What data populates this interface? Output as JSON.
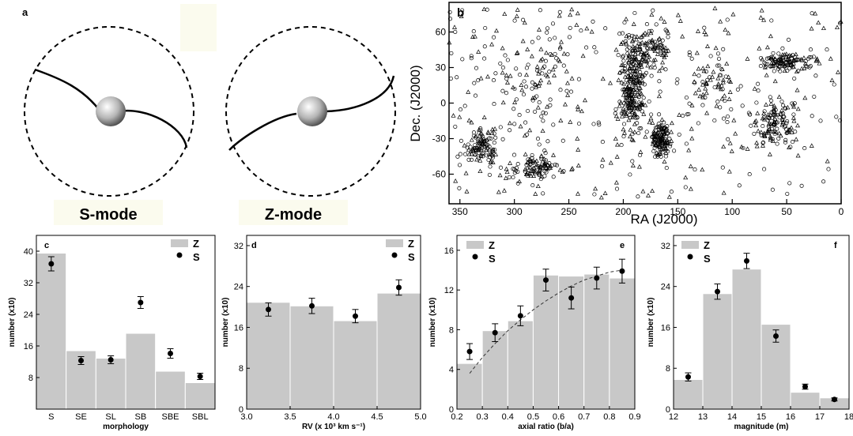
{
  "panel_a": {
    "letter": "a",
    "labels": [
      "S-mode",
      "Z-mode"
    ]
  },
  "chart_data": [
    {
      "panel": "b",
      "type": "scatter",
      "xlabel": "RA (J2000)",
      "ylabel": "Dec. (J2000)",
      "xlim": [
        360,
        0
      ],
      "ylim": [
        -85,
        85
      ],
      "xticks": [
        350,
        300,
        250,
        200,
        150,
        100,
        50,
        0
      ],
      "yticks": [
        60,
        30,
        0,
        -30,
        -60
      ],
      "marker_types": [
        "circle",
        "triangle"
      ],
      "clusters": [
        {
          "ra": 192,
          "dec": 10,
          "sd": [
            10,
            30
          ],
          "weight": 3
        },
        {
          "ra": 165,
          "dec": -30,
          "sd": [
            8,
            12
          ],
          "weight": 2
        },
        {
          "ra": 180,
          "dec": 45,
          "sd": [
            20,
            15
          ],
          "weight": 1.5
        },
        {
          "ra": 330,
          "dec": -35,
          "sd": [
            15,
            14
          ],
          "weight": 1.5
        },
        {
          "ra": 280,
          "dec": -55,
          "sd": [
            20,
            10
          ],
          "weight": 1.5
        },
        {
          "ra": 50,
          "dec": 35,
          "sd": [
            18,
            6
          ],
          "weight": 1.5
        },
        {
          "ra": 60,
          "dec": -15,
          "sd": [
            18,
            18
          ],
          "weight": 2
        },
        {
          "ra": 120,
          "dec": 20,
          "sd": [
            25,
            30
          ],
          "weight": 1.2
        },
        {
          "ra": 280,
          "dec": 20,
          "sd": [
            30,
            30
          ],
          "weight": 1
        }
      ],
      "n_points": 1400
    },
    {
      "panel": "c",
      "type": "bar",
      "xlabel": "morphology",
      "ylabel": "number (x10)",
      "ylim": [
        0,
        44
      ],
      "yticks": [
        8,
        16,
        24,
        32,
        40
      ],
      "categories": [
        "S",
        "SE",
        "SL",
        "SB",
        "SBE",
        "SBL"
      ],
      "series": [
        {
          "name": "Z",
          "kind": "bar",
          "values": [
            39.5,
            14.8,
            12.9,
            19.2,
            9.6,
            6.7
          ]
        },
        {
          "name": "S",
          "kind": "points",
          "values": [
            36.8,
            12.3,
            12.5,
            27.0,
            14.1,
            8.3
          ],
          "errors": [
            1.8,
            1.0,
            1.0,
            1.5,
            1.2,
            0.8
          ]
        }
      ],
      "legend": "top-right"
    },
    {
      "panel": "d",
      "type": "bar",
      "xlabel": "RV (x 10³ km s⁻¹)",
      "ylabel": "number (x10)",
      "xlim": [
        3.0,
        5.0
      ],
      "ylim": [
        0,
        34
      ],
      "xticks": [
        "3.0",
        "3.5",
        "4.0",
        "4.5",
        "5.0"
      ],
      "yticks": [
        0,
        8,
        16,
        24,
        32
      ],
      "bins": [
        [
          3.0,
          3.5
        ],
        [
          3.5,
          4.0
        ],
        [
          4.0,
          4.5
        ],
        [
          4.5,
          5.0
        ]
      ],
      "series": [
        {
          "name": "Z",
          "kind": "bar",
          "values": [
            20.9,
            20.2,
            17.3,
            22.7
          ]
        },
        {
          "name": "S",
          "kind": "points",
          "x": [
            3.25,
            3.75,
            4.25,
            4.75
          ],
          "values": [
            19.5,
            20.2,
            18.2,
            23.8
          ],
          "errors": [
            1.3,
            1.5,
            1.3,
            1.5
          ]
        }
      ],
      "legend": "top-right"
    },
    {
      "panel": "e",
      "type": "bar",
      "xlabel": "axial ratio (b/a)",
      "ylabel": "number (x10)",
      "xlim": [
        0.2,
        0.9
      ],
      "ylim": [
        0,
        17.5
      ],
      "xticks": [
        "0.2",
        "0.3",
        "0.4",
        "0.5",
        "0.6",
        "0.7",
        "0.8",
        "0.9"
      ],
      "yticks": [
        0,
        4,
        8,
        12,
        16
      ],
      "bins": [
        [
          0.2,
          0.3
        ],
        [
          0.3,
          0.4
        ],
        [
          0.4,
          0.5
        ],
        [
          0.5,
          0.6
        ],
        [
          0.6,
          0.7
        ],
        [
          0.7,
          0.8
        ],
        [
          0.8,
          0.9
        ]
      ],
      "series": [
        {
          "name": "Z",
          "kind": "bar",
          "values": [
            4.6,
            7.9,
            8.9,
            13.5,
            13.4,
            13.6,
            13.2
          ]
        },
        {
          "name": "S",
          "kind": "points",
          "x": [
            0.25,
            0.35,
            0.45,
            0.55,
            0.65,
            0.75,
            0.85
          ],
          "values": [
            5.8,
            7.7,
            9.4,
            13.0,
            11.2,
            13.2,
            13.9
          ],
          "errors": [
            0.8,
            0.9,
            1.0,
            1.1,
            1.1,
            1.1,
            1.2
          ]
        },
        {
          "kind": "fit",
          "style": "dashed",
          "x": [
            0.25,
            0.3,
            0.35,
            0.4,
            0.45,
            0.5,
            0.55,
            0.6,
            0.65,
            0.7,
            0.75,
            0.8,
            0.85
          ],
          "values": [
            3.6,
            5.2,
            6.6,
            7.9,
            9.0,
            10.0,
            10.9,
            11.7,
            12.4,
            13.0,
            13.4,
            13.8,
            14.0
          ]
        }
      ],
      "legend": "top-left"
    },
    {
      "panel": "f",
      "type": "bar",
      "xlabel": "magnitude (m)",
      "ylabel": "number (x10)",
      "xlim": [
        12,
        18
      ],
      "ylim": [
        0,
        34
      ],
      "xticks": [
        "12",
        "13",
        "14",
        "15",
        "16",
        "17",
        "18"
      ],
      "yticks": [
        0,
        8,
        16,
        24,
        32
      ],
      "bins": [
        [
          12,
          13
        ],
        [
          13,
          14
        ],
        [
          14,
          15
        ],
        [
          15,
          16
        ],
        [
          16,
          17
        ],
        [
          17,
          18
        ]
      ],
      "series": [
        {
          "name": "Z",
          "kind": "bar",
          "values": [
            5.8,
            22.6,
            27.4,
            16.6,
            3.3,
            2.2
          ]
        },
        {
          "name": "S",
          "kind": "points",
          "x": [
            12.5,
            13.5,
            14.5,
            15.5,
            16.5,
            17.5
          ],
          "values": [
            6.3,
            23.0,
            29.0,
            14.3,
            4.4,
            1.9
          ],
          "errors": [
            0.8,
            1.5,
            1.5,
            1.2,
            0.5,
            0.3
          ]
        }
      ],
      "legend": "top-left"
    }
  ]
}
